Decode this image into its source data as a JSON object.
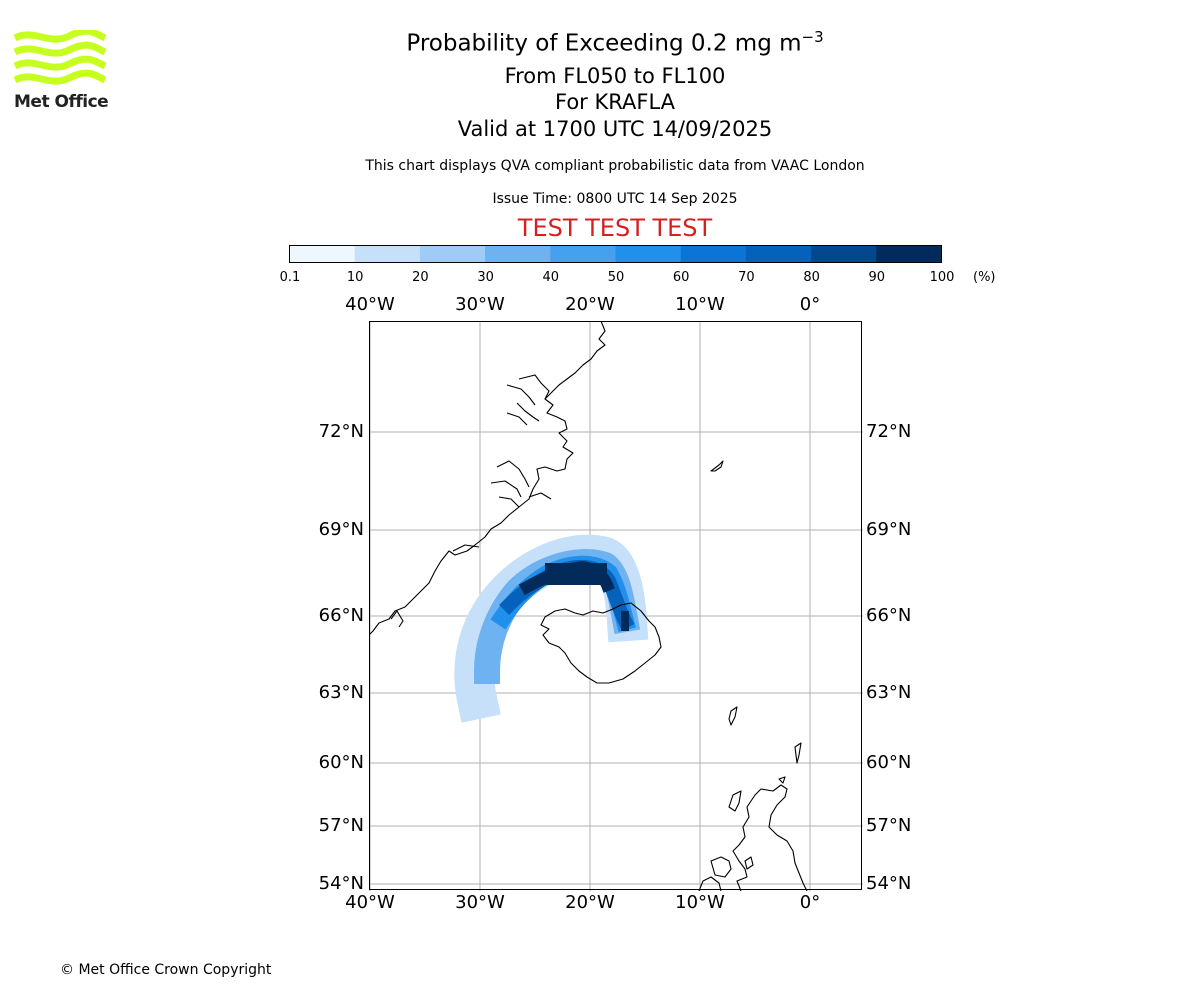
{
  "logo": {
    "text": "Met Office",
    "wave_color": "#c6ff1f",
    "icon": "met-office-waves-logo"
  },
  "header": {
    "title_prefix": "Probability of Exceeding 0.2 mg m",
    "title_superscript": "−3",
    "levels": "From FL050 to FL100",
    "volcano": "For KRAFLA",
    "valid": "Valid at 1700 UTC 14/09/2025",
    "note": "This chart displays QVA compliant probabilistic data from VAAC London",
    "issue_time": "Issue Time: 0800 UTC 14 Sep 2025",
    "test_banner": "TEST TEST TEST",
    "test_color": "#d62020"
  },
  "colorbar": {
    "ticks": [
      "0.1",
      "10",
      "20",
      "30",
      "40",
      "50",
      "60",
      "70",
      "80",
      "90",
      "100"
    ],
    "unit": "(%)",
    "colors": [
      "#eef6fe",
      "#c6e0fa",
      "#9fcbf5",
      "#6fb2f1",
      "#45a0ee",
      "#2190ec",
      "#0b74d6",
      "#0562bb",
      "#03488f",
      "#022a5a"
    ]
  },
  "map": {
    "lon_labels": [
      "40°W",
      "30°W",
      "20°W",
      "10°W",
      "0°"
    ],
    "lon_values": [
      -40,
      -30,
      -20,
      -10,
      0
    ],
    "lat_labels": [
      "72°N",
      "69°N",
      "66°N",
      "63°N",
      "60°N",
      "57°N",
      "54°N"
    ],
    "lat_values": [
      72,
      69,
      66,
      63,
      60,
      57,
      54
    ],
    "gridline_color": "#b0b0b0",
    "plume_levels_percent": [
      10,
      30,
      50,
      70,
      90,
      100
    ]
  },
  "footer": {
    "copyright": "© Met Office Crown Copyright"
  }
}
